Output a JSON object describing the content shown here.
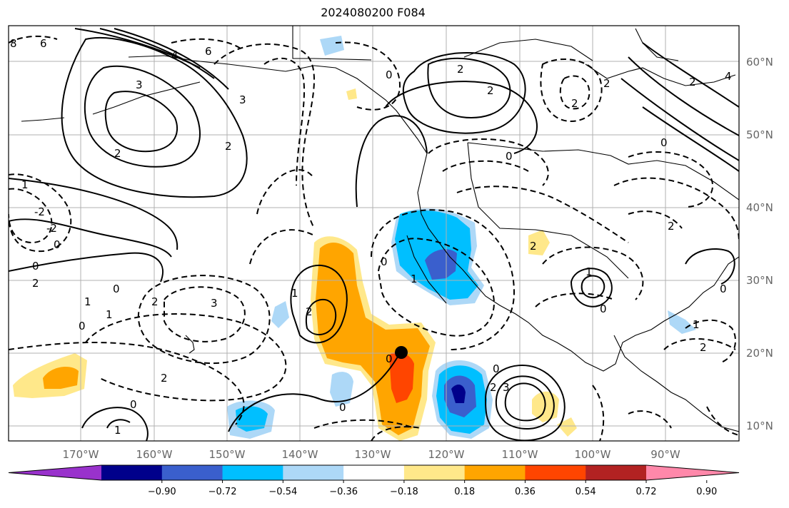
{
  "title": "2024080200 F084",
  "map": {
    "lat_labels": [
      "60°N",
      "50°N",
      "40°N",
      "30°N",
      "20°N",
      "10°N"
    ],
    "lon_labels": [
      "170°W",
      "160°W",
      "150°W",
      "140°W",
      "130°W",
      "120°W",
      "110°W",
      "100°W",
      "90°W"
    ],
    "contour_labels": [
      "8",
      "6",
      "4",
      "6",
      "3",
      "3",
      "2",
      "2",
      "2",
      "2",
      "2",
      "0",
      "2",
      "-2",
      "-2",
      "1",
      "0",
      "0",
      "2",
      "1",
      "0",
      "2",
      "3",
      "0",
      "1",
      "1",
      "2",
      "0",
      "0",
      "3",
      "2",
      "0",
      "1",
      "0",
      "1",
      "2",
      "2",
      "1",
      "0",
      "2",
      "0",
      "1",
      "0",
      "2",
      "4",
      "2",
      "0",
      "0"
    ],
    "colorbar": {
      "ticks": [
        "−0.90",
        "−0.72",
        "−0.54",
        "−0.36",
        "−0.18",
        "0.18",
        "0.36",
        "0.54",
        "0.72",
        "0.90"
      ],
      "colors": [
        "#9932cc",
        "#00008b",
        "#3a5fcd",
        "#00bfff",
        "#add8f7",
        "#ffffff",
        "#ffe88a",
        "#ffa500",
        "#ff4500",
        "#b22222",
        "#ff88aa"
      ]
    },
    "marker": "storm-center"
  }
}
